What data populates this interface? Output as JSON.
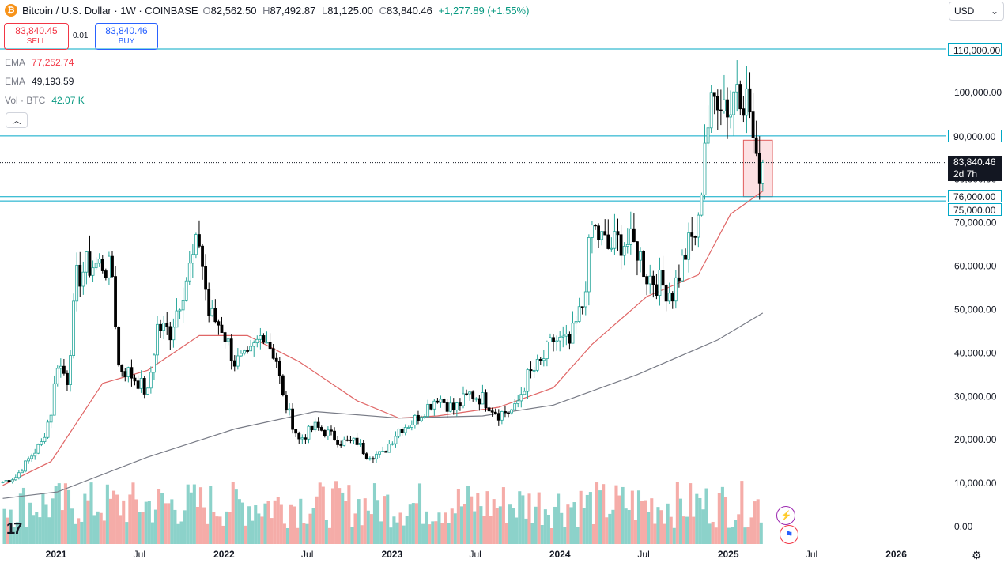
{
  "header": {
    "symbol": "Bitcoin / U.S. Dollar · 1W · COINBASE",
    "open_key": "O",
    "open": "82,562.50",
    "high_key": "H",
    "high": "87,492.87",
    "low_key": "L",
    "low": "81,125.00",
    "close_key": "C",
    "close": "83,840.46",
    "change": "+1,277.89 (+1.55%)"
  },
  "trade": {
    "sell_price": "83,840.45",
    "sell_label": "SELL",
    "spread": "0.01",
    "buy_price": "83,840.46",
    "buy_label": "BUY"
  },
  "indicators": [
    {
      "name": "EMA",
      "value": "77,252.74",
      "color": "#f23645"
    },
    {
      "name": "EMA",
      "value": "49,193.59",
      "color": "#131722"
    },
    {
      "name": "Vol · BTC",
      "value": "42.07 K",
      "color": "#089981"
    }
  ],
  "currency": "USD",
  "price_axis_labels": {
    "l110": "110,000.00",
    "l90": "90,000.00",
    "l76": "76,000.00",
    "l75": "75,000.00",
    "current_price": "83,840.46",
    "countdown": "2d 7h"
  },
  "colors": {
    "up": "#26a69a",
    "down": "#000000",
    "ema_fast": "#e06666",
    "ema_slow": "#787b86",
    "hline": "#00a8c6",
    "vol_up": "#7fcdc4",
    "vol_down": "#f4a39e",
    "box_fill": "rgba(242,54,69,0.15)",
    "box_stroke": "#e05c5c"
  },
  "icons": {
    "logo": "tradingview-logo",
    "settings": "gear-icon",
    "symbol": "bitcoin-icon"
  },
  "chart_data": {
    "type": "candlestick",
    "title": "Bitcoin / U.S. Dollar · 1W · COINBASE",
    "ylim": [
      -2000,
      112000
    ],
    "y_ticks": [
      0,
      10000,
      20000,
      30000,
      40000,
      50000,
      60000,
      70000,
      80000,
      90000,
      100000,
      110000
    ],
    "y_tick_labels": [
      "0.00",
      "10,000.00",
      "20,000.00",
      "30,000.00",
      "40,000.00",
      "50,000.00",
      "60,000.00",
      "70,000.00",
      "80,000.00",
      "90,000.00",
      "100,000.00",
      "110,000.00"
    ],
    "x_tick_labels": [
      "2021",
      "Jul",
      "2022",
      "Jul",
      "2023",
      "Jul",
      "2024",
      "Jul",
      "2025",
      "Jul",
      "2026"
    ],
    "x_tick_dates": [
      "2021-01-01",
      "2021-07-01",
      "2022-01-01",
      "2022-07-01",
      "2023-01-01",
      "2023-07-01",
      "2024-01-01",
      "2024-07-01",
      "2025-01-01",
      "2025-07-01",
      "2026-01-01"
    ],
    "x_range": [
      "2020-09-01",
      "2026-04-20"
    ],
    "horizontal_lines": [
      110000,
      90000,
      76000,
      75000
    ],
    "current_price": 83840.46,
    "highlight_box": {
      "x0": "2025-02-03",
      "x1": "2025-04-07",
      "y0": 76000,
      "y1": 89000
    },
    "series": [
      {
        "name": "BTC/USD",
        "type": "candlestick",
        "note": "approximate weekly closes",
        "points": [
          [
            "2020-09-07",
            10300
          ],
          [
            "2020-10-05",
            11400
          ],
          [
            "2020-11-02",
            15500
          ],
          [
            "2020-11-30",
            19200
          ],
          [
            "2020-12-21",
            26500
          ],
          [
            "2021-01-04",
            38000
          ],
          [
            "2021-01-25",
            34000
          ],
          [
            "2021-02-15",
            57000
          ],
          [
            "2021-03-08",
            60000
          ],
          [
            "2021-04-12",
            60500
          ],
          [
            "2021-05-03",
            58000
          ],
          [
            "2021-05-17",
            37000
          ],
          [
            "2021-06-07",
            35500
          ],
          [
            "2021-06-28",
            33500
          ],
          [
            "2021-07-19",
            30500
          ],
          [
            "2021-08-09",
            46000
          ],
          [
            "2021-09-06",
            45000
          ],
          [
            "2021-10-04",
            55000
          ],
          [
            "2021-11-08",
            66000
          ],
          [
            "2021-11-29",
            49000
          ],
          [
            "2021-12-27",
            46000
          ],
          [
            "2022-01-24",
            38000
          ],
          [
            "2022-02-21",
            38500
          ],
          [
            "2022-03-28",
            45000
          ],
          [
            "2022-04-25",
            38500
          ],
          [
            "2022-05-09",
            29500
          ],
          [
            "2022-06-13",
            20000
          ],
          [
            "2022-07-18",
            23000
          ],
          [
            "2022-08-15",
            21500
          ],
          [
            "2022-09-12",
            19500
          ],
          [
            "2022-10-17",
            19500
          ],
          [
            "2022-11-07",
            16500
          ],
          [
            "2022-12-12",
            16700
          ],
          [
            "2023-01-16",
            22500
          ],
          [
            "2023-02-13",
            24000
          ],
          [
            "2023-03-13",
            27000
          ],
          [
            "2023-04-10",
            30000
          ],
          [
            "2023-05-15",
            27000
          ],
          [
            "2023-06-19",
            30500
          ],
          [
            "2023-07-17",
            29500
          ],
          [
            "2023-08-21",
            26000
          ],
          [
            "2023-09-25",
            27000
          ],
          [
            "2023-10-23",
            34500
          ],
          [
            "2023-11-20",
            37500
          ],
          [
            "2023-12-18",
            43000
          ],
          [
            "2024-01-22",
            42000
          ],
          [
            "2024-02-19",
            51000
          ],
          [
            "2024-03-11",
            69000
          ],
          [
            "2024-04-15",
            64000
          ],
          [
            "2024-05-13",
            66000
          ],
          [
            "2024-06-17",
            64000
          ],
          [
            "2024-07-08",
            58000
          ],
          [
            "2024-08-05",
            56000
          ],
          [
            "2024-09-02",
            54000
          ],
          [
            "2024-09-30",
            63000
          ],
          [
            "2024-10-28",
            69000
          ],
          [
            "2024-11-11",
            90000
          ],
          [
            "2024-12-09",
            101000
          ],
          [
            "2025-01-06",
            96000
          ],
          [
            "2025-01-20",
            104000
          ],
          [
            "2025-02-17",
            96000
          ],
          [
            "2025-03-03",
            82000
          ],
          [
            "2025-03-17",
            83840
          ]
        ]
      },
      {
        "name": "EMA",
        "values_note": "fast EMA",
        "points": [
          [
            "2020-09-07",
            9500
          ],
          [
            "2020-12-21",
            15000
          ],
          [
            "2021-04-12",
            33000
          ],
          [
            "2021-07-19",
            36000
          ],
          [
            "2021-11-08",
            44000
          ],
          [
            "2022-02-21",
            44000
          ],
          [
            "2022-06-13",
            38000
          ],
          [
            "2022-10-17",
            29000
          ],
          [
            "2023-01-16",
            25000
          ],
          [
            "2023-04-10",
            25500
          ],
          [
            "2023-08-21",
            27500
          ],
          [
            "2023-12-18",
            32000
          ],
          [
            "2024-03-11",
            42000
          ],
          [
            "2024-07-08",
            53000
          ],
          [
            "2024-10-28",
            58000
          ],
          [
            "2025-01-06",
            72000
          ],
          [
            "2025-03-17",
            77250
          ]
        ]
      },
      {
        "name": "EMA",
        "values_note": "slow EMA",
        "points": [
          [
            "2020-09-07",
            6500
          ],
          [
            "2021-01-04",
            8000
          ],
          [
            "2021-07-19",
            16000
          ],
          [
            "2022-01-24",
            22500
          ],
          [
            "2022-07-18",
            26500
          ],
          [
            "2023-01-16",
            25000
          ],
          [
            "2023-07-17",
            25500
          ],
          [
            "2023-12-18",
            28000
          ],
          [
            "2024-06-17",
            35000
          ],
          [
            "2024-12-09",
            43000
          ],
          [
            "2025-03-17",
            49190
          ]
        ]
      }
    ]
  }
}
